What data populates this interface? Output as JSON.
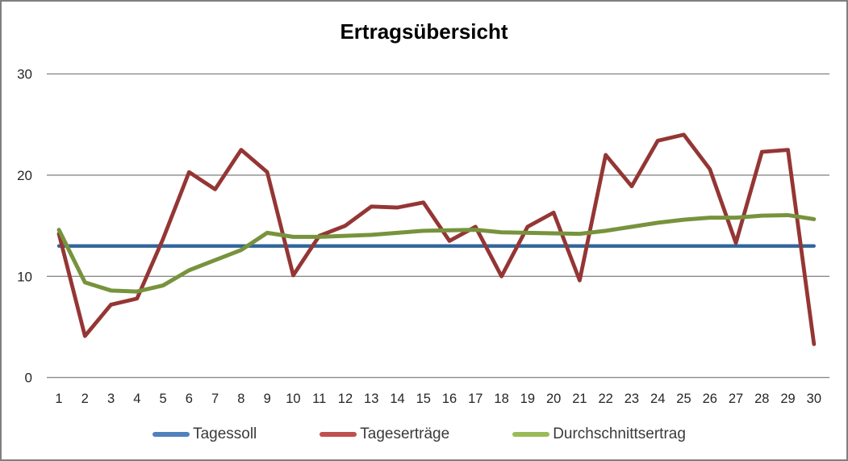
{
  "chart": {
    "title": "Ertragsübersicht"
  },
  "legend": {
    "items": [
      {
        "label": "Tagessoll",
        "color": "#4F81BD"
      },
      {
        "label": "Tageserträge",
        "color": "#C0504D"
      },
      {
        "label": "Durchschnittsertrag",
        "color": "#9BBB59"
      }
    ]
  },
  "chart_data": {
    "type": "line",
    "title": "Ertragsübersicht",
    "categories": [
      1,
      2,
      3,
      4,
      5,
      6,
      7,
      8,
      9,
      10,
      11,
      12,
      13,
      14,
      15,
      16,
      17,
      18,
      19,
      20,
      21,
      22,
      23,
      24,
      25,
      26,
      27,
      28,
      29,
      30
    ],
    "xlabel": "",
    "ylabel": "",
    "ylim": [
      0,
      30
    ],
    "yticks": [
      0,
      10,
      20,
      30
    ],
    "grid": "horizontal",
    "legend_position": "bottom",
    "series": [
      {
        "name": "Tagessoll",
        "color": "#31659B",
        "legend_color": "#4F81BD",
        "values": [
          13,
          13,
          13,
          13,
          13,
          13,
          13,
          13,
          13,
          13,
          13,
          13,
          13,
          13,
          13,
          13,
          13,
          13,
          13,
          13,
          13,
          13,
          13,
          13,
          13,
          13,
          13,
          13,
          13,
          13
        ]
      },
      {
        "name": "Tageserträge",
        "color": "#943634",
        "legend_color": "#C0504D",
        "values": [
          14.2,
          4.1,
          7.2,
          7.8,
          13.7,
          20.3,
          18.6,
          22.5,
          20.3,
          10.1,
          14.0,
          15.0,
          16.9,
          16.8,
          17.3,
          13.5,
          14.9,
          10.0,
          14.9,
          16.3,
          9.6,
          22.0,
          18.9,
          23.4,
          24.0,
          20.6,
          13.3,
          22.3,
          22.5,
          3.3
        ]
      },
      {
        "name": "Durchschnittsertrag",
        "color": "#77933C",
        "legend_color": "#9BBB59",
        "values": [
          14.6,
          9.4,
          8.6,
          8.5,
          9.1,
          10.6,
          11.6,
          12.6,
          14.3,
          13.9,
          13.9,
          14.0,
          14.1,
          14.3,
          14.5,
          14.55,
          14.6,
          14.35,
          14.3,
          14.25,
          14.2,
          14.5,
          14.9,
          15.3,
          15.6,
          15.8,
          15.8,
          16.0,
          16.05,
          15.65
        ]
      }
    ]
  }
}
